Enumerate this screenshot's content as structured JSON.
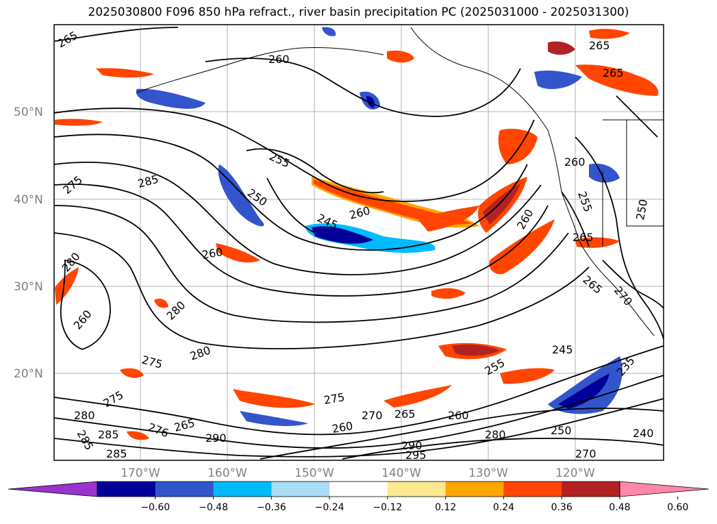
{
  "title": "2025030800 F096 850 hPa refract., river basin precipitation PC (2025031000 - 2025031300)",
  "map": {
    "lat_labels": [
      "50°N",
      "40°N",
      "30°N",
      "20°N"
    ],
    "lon_labels": [
      "170°W",
      "160°W",
      "150°W",
      "140°W",
      "130°W",
      "120°W"
    ],
    "contour_labels": [
      "265",
      "260",
      "265",
      "265",
      "255",
      "285",
      "275",
      "250",
      "245",
      "260",
      "260",
      "280",
      "260",
      "280",
      "275",
      "280",
      "275",
      "280",
      "285",
      "285",
      "276",
      "265",
      "290",
      "275",
      "260",
      "270",
      "265",
      "260",
      "280",
      "285",
      "290",
      "295",
      "250",
      "240",
      "270",
      "255",
      "245",
      "235",
      "260",
      "255",
      "260",
      "265",
      "270",
      "265",
      "250"
    ]
  },
  "colorbar": {
    "ticks": [
      "−0.60",
      "−0.48",
      "−0.36",
      "−0.24",
      "−0.12",
      "0.12",
      "0.24",
      "0.36",
      "0.48",
      "0.60"
    ],
    "colors": [
      "#9933cc",
      "#000099",
      "#3355cc",
      "#00bbff",
      "#aadcf5",
      "#ffffff",
      "#fde98f",
      "#ffa500",
      "#ff4500",
      "#b22222",
      "#ff88aa"
    ]
  }
}
